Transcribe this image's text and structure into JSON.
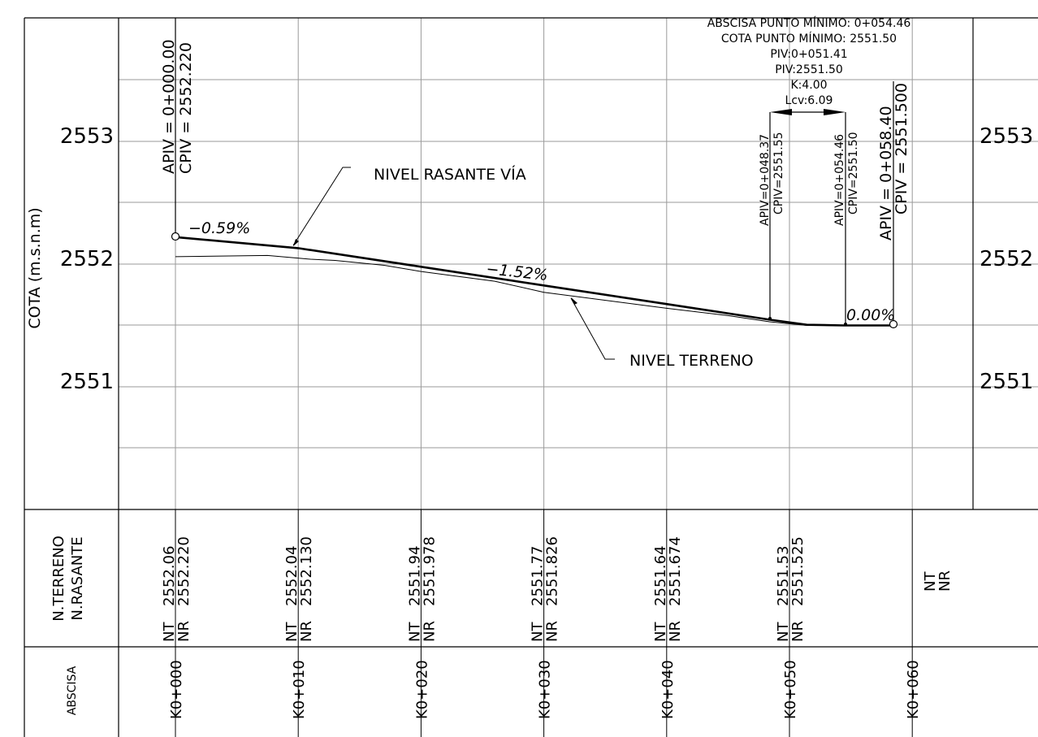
{
  "cota_ticks": [
    {
      "label": "2553",
      "elev": 2553
    },
    {
      "label": "2552",
      "elev": 2552
    },
    {
      "label": "2551",
      "elev": 2551
    }
  ],
  "axis_label": "COTA (m.s.n.m)",
  "labels": {
    "rasante": "NIVEL  RASANTE  VÍA",
    "terreno": "NIVEL  TERRENO",
    "slope1": "−0.59%",
    "slope2": "−1.52%",
    "slope3": "0.00%"
  },
  "curve_info": [
    "ABSCISA  PUNTO  MÍNIMO:  0+054.46",
    "COTA  PUNTO  MÍNIMO:  2551.50",
    "PIV:0+051.41",
    "PIV:2551.50",
    "K:4.00",
    "Lcv:6.09"
  ],
  "vertical_labels": {
    "start_apiv": "APIV  =  0+000.00",
    "start_cpiv": "CPIV  =  2552.220",
    "pcv_apiv": "APIV=0+048.37",
    "pcv_cpiv": "CPIV=2551.55",
    "ptv_apiv": "APIV=0+054.46",
    "ptv_cpiv": "CPIV=2551.50",
    "end_apiv": "APIV  =  0+058.40",
    "end_cpiv": "CPIV  =  2551.500"
  },
  "table": {
    "header_niveles_1": "N.TERRENO",
    "header_niveles_2": "N.RASANTE",
    "header_abscisa": "ABSCISA",
    "nt_prefix": "NT",
    "nr_prefix": "NR",
    "stations": [
      {
        "abscisa": "K0+000",
        "nt": "2552.06",
        "nr": "2552.220"
      },
      {
        "abscisa": "K0+010",
        "nt": "2552.04",
        "nr": "2552.130"
      },
      {
        "abscisa": "K0+020",
        "nt": "2551.94",
        "nr": "2551.978"
      },
      {
        "abscisa": "K0+030",
        "nt": "2551.77",
        "nr": "2551.826"
      },
      {
        "abscisa": "K0+040",
        "nt": "2551.64",
        "nr": "2551.674"
      },
      {
        "abscisa": "K0+050",
        "nt": "2551.53",
        "nr": "2551.525"
      },
      {
        "abscisa": "K0+060",
        "nt": "",
        "nr": ""
      }
    ]
  },
  "chart_data": {
    "type": "line",
    "xlabel": "ABSCISA",
    "ylabel": "COTA (m.s.n.m)",
    "ylim": [
      2550.3,
      2553.5
    ],
    "series": [
      {
        "name": "NIVEL RASANTE VÍA",
        "x": [
          0,
          10,
          20,
          30,
          40,
          48.37,
          51.41,
          54.46,
          58.4
        ],
        "y": [
          2552.22,
          2552.13,
          2551.978,
          2551.826,
          2551.674,
          2551.547,
          2551.505,
          2551.5,
          2551.5
        ]
      },
      {
        "name": "NIVEL TERRENO",
        "x": [
          0,
          7.5,
          11,
          13,
          17,
          20,
          26,
          30,
          40,
          45,
          48.37,
          51.41,
          54.46,
          58.4
        ],
        "y": [
          2552.06,
          2552.07,
          2552.04,
          2552.03,
          2551.99,
          2551.94,
          2551.86,
          2551.77,
          2551.64,
          2551.58,
          2551.53,
          2551.5,
          2551.5,
          2551.5
        ]
      }
    ]
  }
}
